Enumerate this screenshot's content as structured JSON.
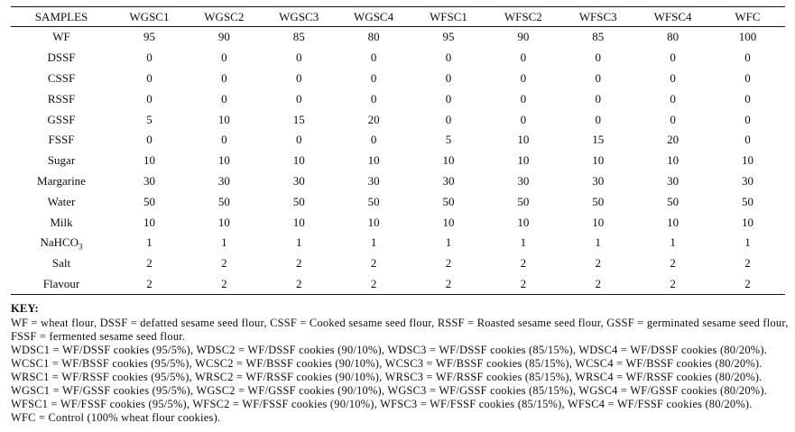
{
  "table": {
    "columns": [
      "SAMPLES",
      "WGSC1",
      "WGSC2",
      "WGSC3",
      "WGSC4",
      "WFSC1",
      "WFSC2",
      "WFSC3",
      "WFSC4",
      "WFC"
    ],
    "rows": [
      {
        "label": "WF",
        "values": [
          "95",
          "90",
          "85",
          "80",
          "95",
          "90",
          "85",
          "80",
          "100"
        ]
      },
      {
        "label": "DSSF",
        "values": [
          "0",
          "0",
          "0",
          "0",
          "0",
          "0",
          "0",
          "0",
          "0"
        ]
      },
      {
        "label": "CSSF",
        "values": [
          "0",
          "0",
          "0",
          "0",
          "0",
          "0",
          "0",
          "0",
          "0"
        ]
      },
      {
        "label": "RSSF",
        "values": [
          "0",
          "0",
          "0",
          "0",
          "0",
          "0",
          "0",
          "0",
          "0"
        ]
      },
      {
        "label": "GSSF",
        "values": [
          "5",
          "10",
          "15",
          "20",
          "0",
          "0",
          "0",
          "0",
          "0"
        ]
      },
      {
        "label": "FSSF",
        "values": [
          "0",
          "0",
          "0",
          "0",
          "5",
          "10",
          "15",
          "20",
          "0"
        ]
      },
      {
        "label": "Sugar",
        "values": [
          "10",
          "10",
          "10",
          "10",
          "10",
          "10",
          "10",
          "10",
          "10"
        ]
      },
      {
        "label": "Margarine",
        "values": [
          "30",
          "30",
          "30",
          "30",
          "30",
          "30",
          "30",
          "30",
          "30"
        ]
      },
      {
        "label": "Water",
        "values": [
          "50",
          "50",
          "50",
          "50",
          "50",
          "50",
          "50",
          "50",
          "50"
        ]
      },
      {
        "label": "Milk",
        "values": [
          "10",
          "10",
          "10",
          "10",
          "10",
          "10",
          "10",
          "10",
          "10"
        ]
      },
      {
        "label": "NaHCO",
        "label_sub": "3",
        "values": [
          "1",
          "1",
          "1",
          "1",
          "1",
          "1",
          "1",
          "1",
          "1"
        ]
      },
      {
        "label": "Salt",
        "values": [
          "2",
          "2",
          "2",
          "2",
          "2",
          "2",
          "2",
          "2",
          "2"
        ]
      },
      {
        "label": "Flavour",
        "values": [
          "2",
          "2",
          "2",
          "2",
          "2",
          "2",
          "2",
          "2",
          "2"
        ]
      }
    ]
  },
  "key": {
    "heading": "KEY:",
    "lines": [
      "WF = wheat flour, DSSF = defatted sesame seed flour, CSSF = Cooked sesame seed flour, RSSF = Roasted sesame seed flour, GSSF = germinated sesame seed flour,",
      "FSSF = fermented sesame seed flour.",
      "WDSC1 = WF/DSSF cookies (95/5%), WDSC2 = WF/DSSF cookies (90/10%), WDSC3 = WF/DSSF cookies (85/15%), WDSC4 = WF/DSSF cookies (80/20%).",
      "WCSC1 = WF/BSSF cookies (95/5%), WCSC2 = WF/BSSF cookies (90/10%), WCSC3 = WF/BSSF cookies (85/15%), WCSC4 = WF/BSSF cookies (80/20%).",
      "WRSC1 = WF/RSSF cookies (95/5%), WRSC2 = WF/RSSF cookies (90/10%), WRSC3 = WF/RSSF cookies (85/15%), WRSC4 = WF/RSSF cookies (80/20%).",
      "WGSC1 = WF/GSSF cookies (95/5%), WGSC2 = WF/GSSF cookies (90/10%), WGSC3 = WF/GSSF cookies (85/15%), WGSC4 = WF/GSSF cookies (80/20%).",
      "WFSC1 = WF/FSSF cookies (95/5%), WFSC2 = WF/FSSF cookies (90/10%), WFSC3 = WF/FSSF cookies (85/15%), WFSC4 = WF/FSSF cookies (80/20%).",
      "WFC = Control (100% wheat flour cookies)."
    ]
  },
  "colors": {
    "text": "#0d0d12",
    "rule": "#151515",
    "background": "#ffffff"
  }
}
